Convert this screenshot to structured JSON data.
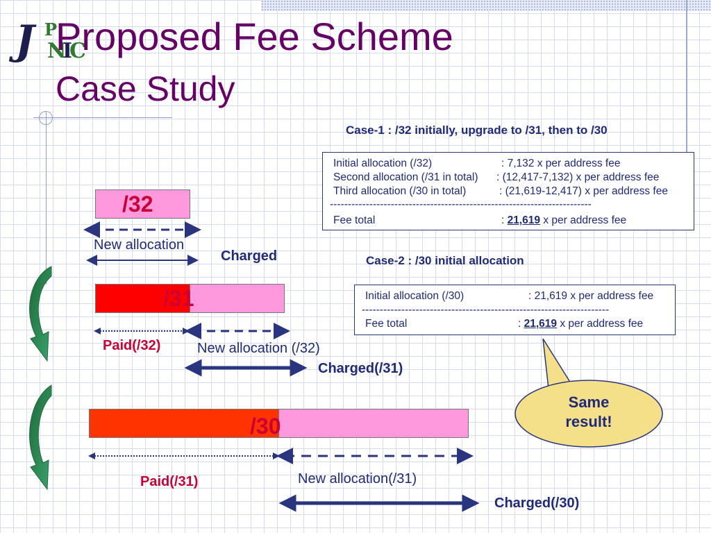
{
  "title": {
    "line1": "Proposed Fee Scheme",
    "line2": "Case Study"
  },
  "logo_text": "JPNIC",
  "bars": {
    "b32": {
      "label": "/32"
    },
    "b31": {
      "label": "/31"
    },
    "b30": {
      "label": "/30"
    }
  },
  "labels": {
    "new_allocation": "New allocation",
    "charged": "Charged",
    "paid32": "Paid(/32)",
    "new_allocation32": "New allocation (/32)",
    "charged31": "Charged(/31)",
    "paid31": "Paid(/31)",
    "new_allocation31": "New allocation(/31)",
    "charged30": "Charged(/30)"
  },
  "case1": {
    "heading": "Case-1 : /32 initially, upgrade to /31, then to /30",
    "rows": [
      {
        "label": "Initial allocation (/32)",
        "value": ": 7,132 x per address fee"
      },
      {
        "label": "Second allocation (/31 in total)",
        "value": ": (12,417-7,132) x per address fee"
      },
      {
        "label": "Third allocation (/30 in total)",
        "value": ": (21,619-12,417) x per address fee"
      }
    ],
    "divider": "-------------------------------------------------------------------------",
    "total_label": "Fee total",
    "total_prefix": ":",
    "total_value": "21,619",
    "total_suffix": "x per address fee"
  },
  "case2": {
    "heading": "Case-2 : /30 initial allocation",
    "rows": [
      {
        "label": "Initial allocation (/30)",
        "value": ": 21,619 x per address fee"
      }
    ],
    "divider": "---------------------------------------------------------------------",
    "total_label": "Fee total",
    "total_prefix": ":",
    "total_value": "21,619",
    "total_suffix": "x per address fee"
  },
  "callout": {
    "line1": "Same",
    "line2": "result!"
  },
  "colors": {
    "title": "#660066",
    "text": "#1f2a78",
    "red_text": "#cc0033",
    "pink": "#ff99dd",
    "red": "#ff0000",
    "orange": "#ff3300",
    "callout_fill": "#f5e08a",
    "arrow_green": "#2e8b57"
  }
}
